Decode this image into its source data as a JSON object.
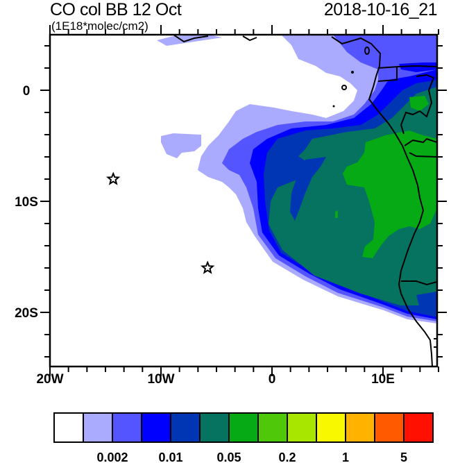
{
  "title": "CO col BB 12 Oct",
  "units": "(1E18*molec/cm2)",
  "datetime": "2018-10-16_21",
  "map": {
    "region": "Southeast Atlantic / West-central Africa",
    "lon_range": [
      "20W",
      "15E"
    ],
    "lat_range": [
      "5N",
      "25S"
    ],
    "x_tick_labels": [
      "20W",
      "10W",
      "0",
      "10E"
    ],
    "y_tick_labels": [
      "0",
      "10S",
      "20S"
    ],
    "markers": [
      {
        "type": "star",
        "lon": -14.3,
        "lat": -8.0
      },
      {
        "type": "star",
        "lon": -5.8,
        "lat": -16.0
      }
    ]
  },
  "colorbar": {
    "colors": [
      "#ffffff",
      "#aaaaff",
      "#5555ff",
      "#0000ff",
      "#0035b3",
      "#05735f",
      "#05aa14",
      "#50c80a",
      "#a8e600",
      "#f8f800",
      "#ffb300",
      "#ff5a00",
      "#ff1000"
    ],
    "labels": [
      "0.002",
      "0.01",
      "0.05",
      "0.2",
      "1",
      "5"
    ]
  }
}
